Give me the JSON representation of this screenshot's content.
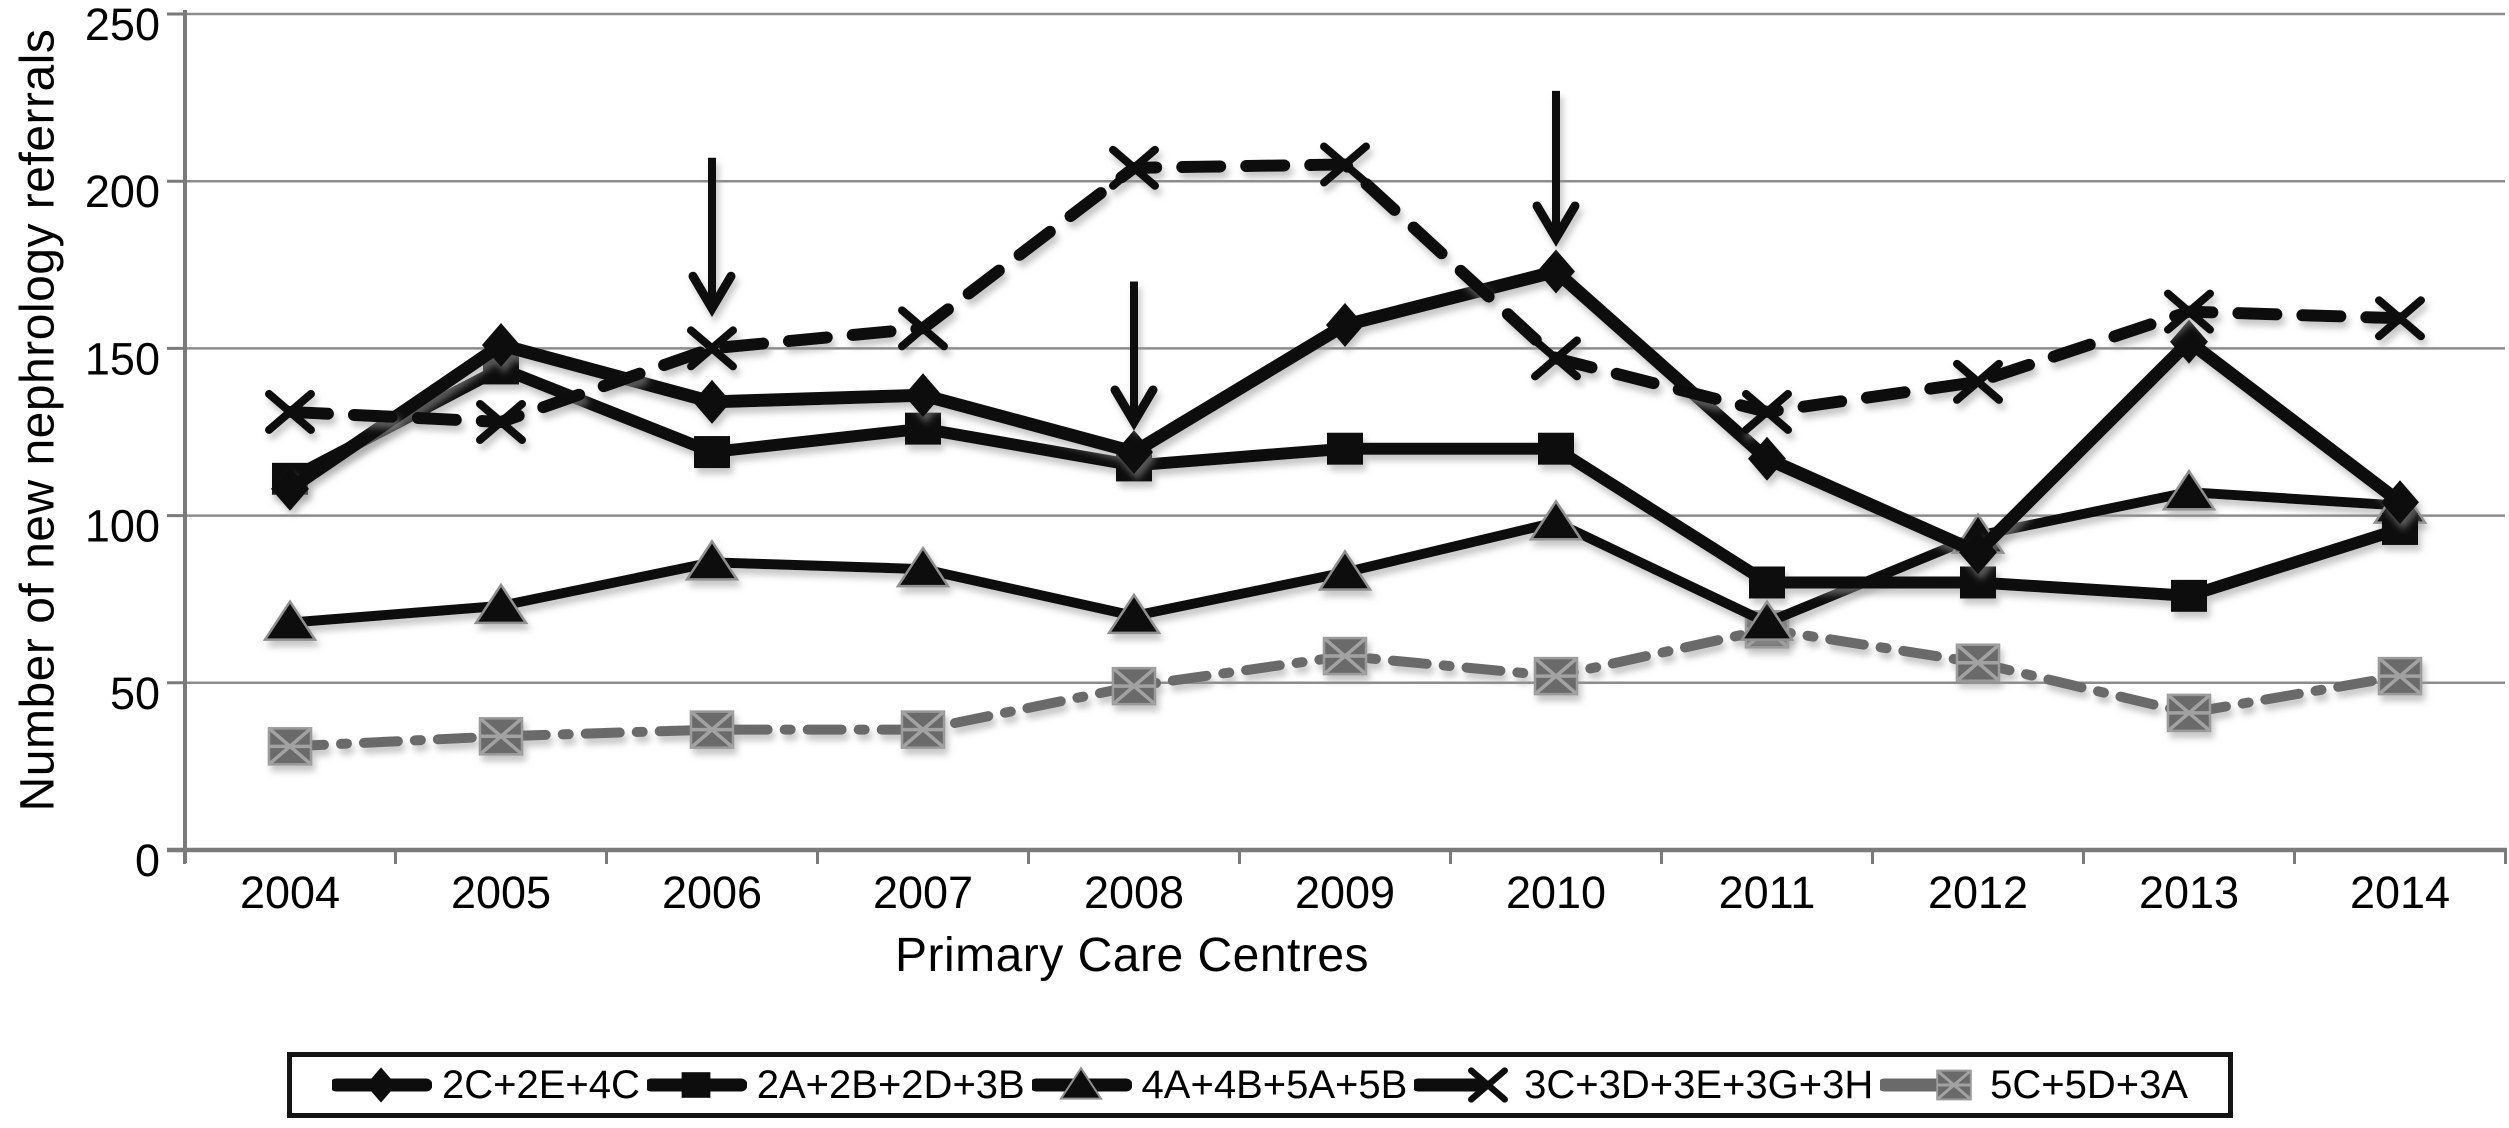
{
  "figure": {
    "background": "#ffffff",
    "series_color": "#0d0d0d",
    "gray_series_color": "#6a6a6a",
    "gridline_color": "#8c8c8c",
    "axis_color": "#7a7a7a"
  },
  "chart_data": {
    "type": "line",
    "title": "",
    "xlabel": "Primary Care Centres",
    "ylabel": "Number of new nephrology referrals",
    "categories": [
      "2004",
      "2005",
      "2006",
      "2007",
      "2008",
      "2009",
      "2010",
      "2011",
      "2012",
      "2013",
      "2014"
    ],
    "yticks": [
      "0",
      "50",
      "100",
      "150",
      "200",
      "250"
    ],
    "ylim": [
      0,
      250
    ],
    "grid": true,
    "legend_position": "bottom",
    "series": [
      {
        "name": "2C+2E+4C",
        "marker": "diamond",
        "line": "solid",
        "color": "#0d0d0d",
        "values": [
          108,
          151,
          134,
          136,
          119,
          157,
          173,
          117,
          89,
          152,
          104
        ]
      },
      {
        "name": "2A+2B+2D+3B",
        "marker": "square",
        "line": "solid",
        "color": "#0d0d0d",
        "values": [
          111,
          144,
          119,
          126,
          115,
          120,
          120,
          80,
          80,
          76,
          96
        ]
      },
      {
        "name": "4A+4B+5A+5B",
        "marker": "triangle",
        "line": "solid",
        "color": "#0d0d0d",
        "values": [
          68,
          73,
          86,
          84,
          70,
          83,
          98,
          68,
          94,
          107,
          103
        ]
      },
      {
        "name": "3C+3D+3E+3G+3H",
        "marker": "x",
        "line": "dashed",
        "color": "#0d0d0d",
        "values": [
          131,
          128,
          150,
          156,
          204,
          205,
          147,
          131,
          140,
          161,
          159
        ]
      },
      {
        "name": "5C+5D+3A",
        "marker": "boxed-x",
        "line": "dashdot",
        "color": "#6a6a6a",
        "values": [
          31,
          34,
          36,
          36,
          49,
          58,
          52,
          66,
          56,
          41,
          52
        ]
      }
    ],
    "annotations": {
      "arrows": [
        {
          "at_year": "2006",
          "value_from": 207,
          "value_to": 162,
          "direction": "down"
        },
        {
          "at_year": "2008",
          "value_from": 170,
          "value_to": 128,
          "direction": "down"
        },
        {
          "at_year": "2010",
          "value_from": 227,
          "value_to": 183,
          "direction": "down"
        }
      ]
    }
  }
}
